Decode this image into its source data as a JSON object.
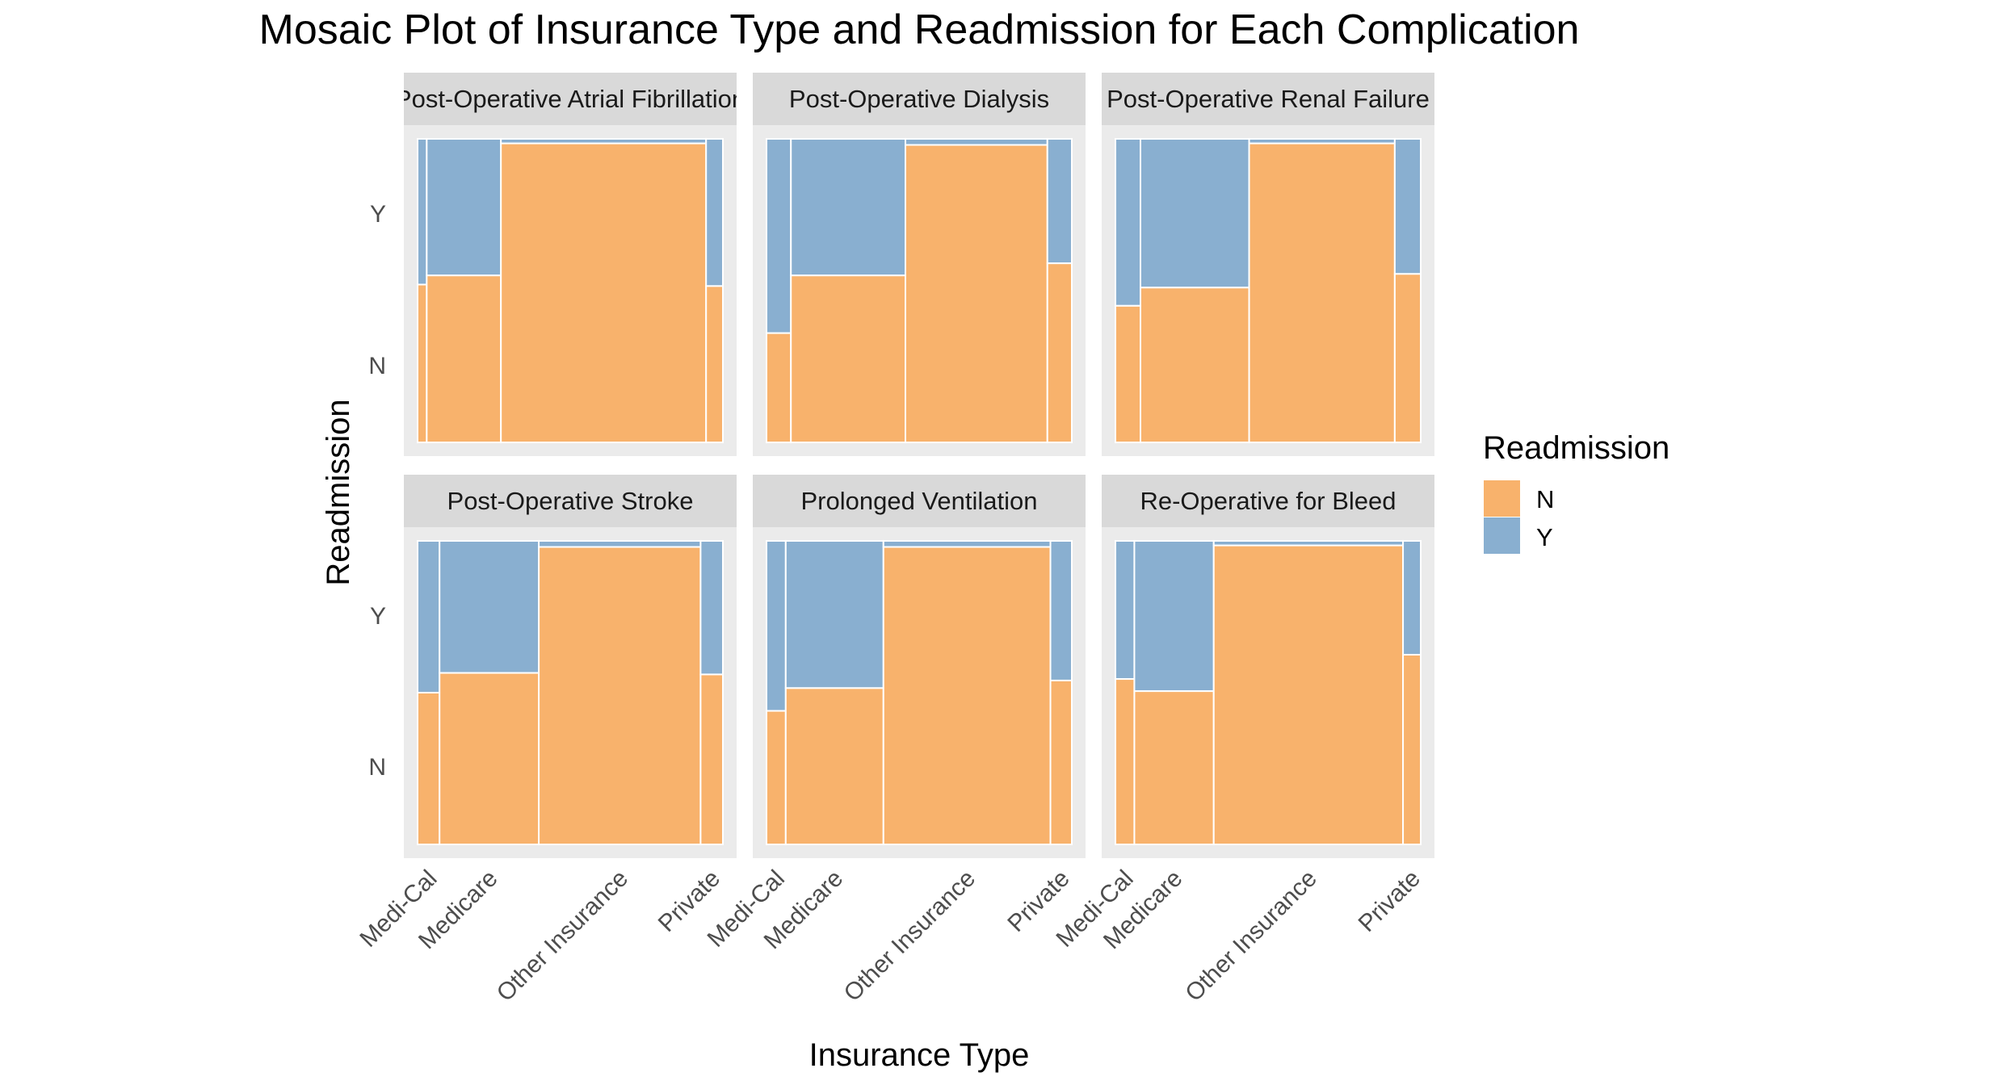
{
  "chart_data": {
    "type": "mosaic",
    "title": "Mosaic Plot of Insurance Type and Readmission for Each Complication",
    "xlabel": "Insurance Type",
    "ylabel": "Readmission",
    "x_categories": [
      "Medi-Cal",
      "Medicare",
      "Other Insurance",
      "Private"
    ],
    "y_ticks": [
      "N",
      "Y"
    ],
    "legend": {
      "title": "Readmission",
      "entries": [
        {
          "label": "N",
          "color": "#F8B26C"
        },
        {
          "label": "Y",
          "color": "#89AFD0"
        }
      ],
      "position": "right"
    },
    "colors": {
      "N": "#F8B26C",
      "Y": "#89AFD0",
      "panel_bg": "#EBEBEB",
      "strip_bg": "#D9D9D9"
    },
    "panels": [
      {
        "label": "Post-Operative Atrial Fibrillation",
        "widths": [
          0.03,
          0.243,
          0.672,
          0.055
        ],
        "n_fraction": [
          0.52,
          0.55,
          0.985,
          0.515
        ]
      },
      {
        "label": "Post-Operative Dialysis",
        "widths": [
          0.08,
          0.375,
          0.465,
          0.08
        ],
        "n_fraction": [
          0.36,
          0.55,
          0.98,
          0.59
        ]
      },
      {
        "label": "Post-Operative Renal Failure",
        "widths": [
          0.082,
          0.356,
          0.477,
          0.085
        ],
        "n_fraction": [
          0.45,
          0.51,
          0.985,
          0.555
        ]
      },
      {
        "label": "Post-Operative Stroke",
        "widths": [
          0.072,
          0.325,
          0.53,
          0.073
        ],
        "n_fraction": [
          0.5,
          0.565,
          0.98,
          0.56
        ]
      },
      {
        "label": "Prolonged Ventilation",
        "widths": [
          0.063,
          0.32,
          0.547,
          0.07
        ],
        "n_fraction": [
          0.44,
          0.515,
          0.98,
          0.54
        ]
      },
      {
        "label": "Re-Operative for Bleed",
        "widths": [
          0.062,
          0.26,
          0.62,
          0.058
        ],
        "n_fraction": [
          0.545,
          0.505,
          0.985,
          0.625
        ]
      }
    ]
  }
}
